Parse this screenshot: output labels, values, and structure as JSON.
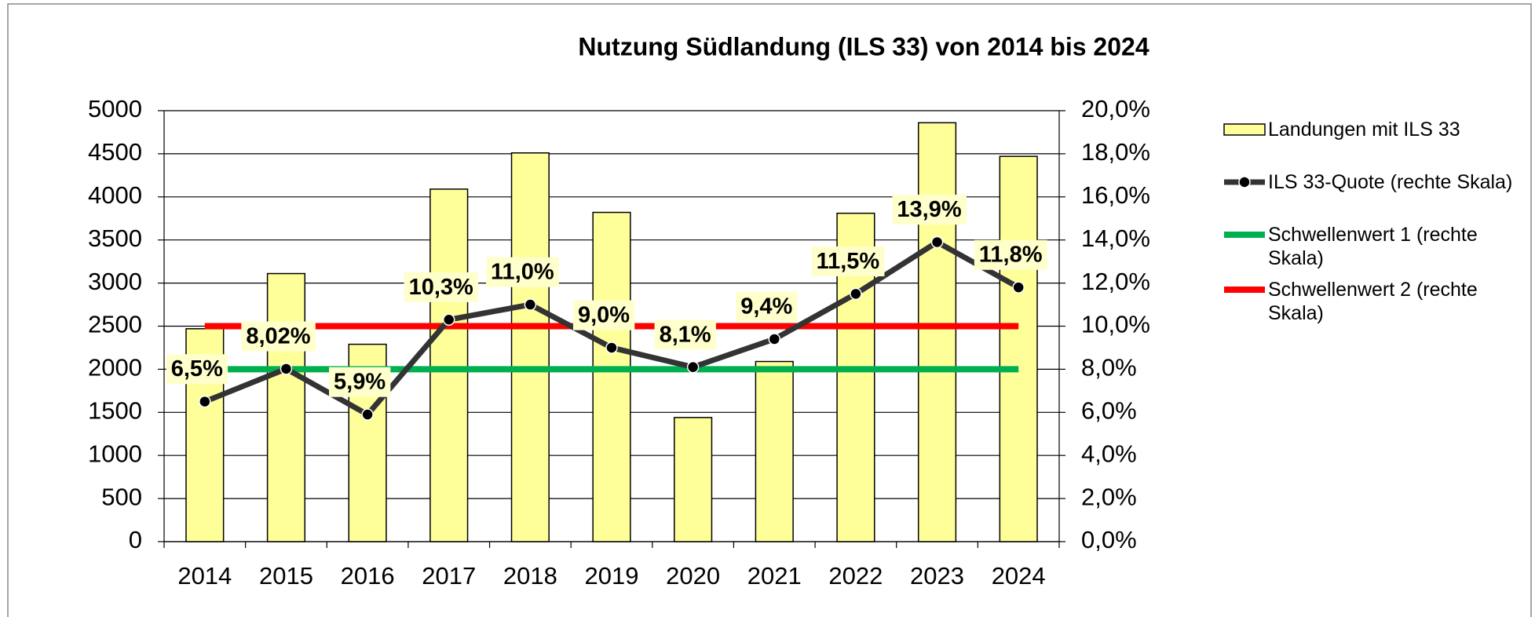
{
  "chart_data": {
    "type": "bar",
    "title": "Nutzung Südlandung (ILS 33) von 2014 bis 2024",
    "categories": [
      "2014",
      "2015",
      "2016",
      "2017",
      "2018",
      "2019",
      "2020",
      "2021",
      "2022",
      "2023",
      "2024"
    ],
    "series": [
      {
        "name": "Landungen mit ILS 33",
        "type": "bar",
        "color": "#ffff99",
        "values": [
          2470,
          3110,
          2290,
          4090,
          4510,
          3820,
          1440,
          2090,
          3810,
          4860,
          4470
        ]
      },
      {
        "name": "ILS 33-Quote (rechte Skala)",
        "type": "line",
        "axis": "y2",
        "color": "#333333",
        "values": [
          6.5,
          8.02,
          5.9,
          10.3,
          11.0,
          9.0,
          8.1,
          9.4,
          11.5,
          13.9,
          11.8
        ],
        "value_labels": [
          "6,5%",
          "8,02%",
          "5,9%",
          "10,3%",
          "11,0%",
          "9,0%",
          "8,1%",
          "9,4%",
          "11,5%",
          "13,9%",
          "11,8%"
        ]
      },
      {
        "name": "Schwellenwert 1 (rechte Skala)",
        "type": "line",
        "axis": "y2",
        "color": "#00b050",
        "values": [
          8,
          8,
          8,
          8,
          8,
          8,
          8,
          8,
          8,
          8,
          8
        ]
      },
      {
        "name": "Schwellenwert 2  (rechte Skala)",
        "type": "line",
        "axis": "y2",
        "color": "#ff0000",
        "values": [
          10,
          10,
          10,
          10,
          10,
          10,
          10,
          10,
          10,
          10,
          10
        ]
      }
    ],
    "ylim": [
      0,
      5000
    ],
    "yticks": [
      0,
      500,
      1000,
      1500,
      2000,
      2500,
      3000,
      3500,
      4000,
      4500,
      5000
    ],
    "y2lim": [
      0,
      20
    ],
    "y2ticks": [
      {
        "value": 0,
        "label": "0,0%"
      },
      {
        "value": 2,
        "label": "2,0%"
      },
      {
        "value": 4,
        "label": "4,0%"
      },
      {
        "value": 6,
        "label": "6,0%"
      },
      {
        "value": 8,
        "label": "8,0%"
      },
      {
        "value": 10,
        "label": "10,0%"
      },
      {
        "value": 12,
        "label": "12,0%"
      },
      {
        "value": 14,
        "label": "14,0%"
      },
      {
        "value": 16,
        "label": "16,0%"
      },
      {
        "value": 18,
        "label": "18,0%"
      },
      {
        "value": 20,
        "label": "20,0%"
      }
    ],
    "grid": true,
    "legend": "right"
  }
}
